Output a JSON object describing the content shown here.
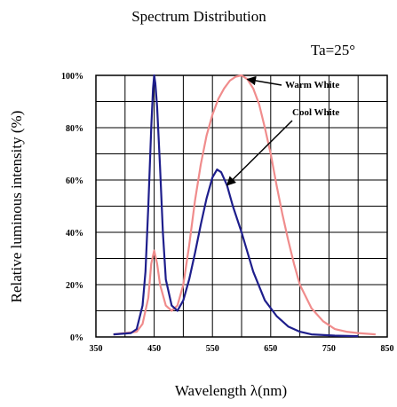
{
  "chart_data": {
    "type": "line",
    "title": "Spectrum Distribution",
    "condition_note": "Ta=25°",
    "xlabel": "Wavelength λ(nm)",
    "ylabel": "Relative luminous intensity (%)",
    "xlim": [
      350,
      850
    ],
    "ylim": [
      0,
      100
    ],
    "x_ticks": [
      "350",
      "450",
      "550",
      "650",
      "750",
      "850"
    ],
    "y_ticks": [
      "0%",
      "20%",
      "40%",
      "60%",
      "80%",
      "100%"
    ],
    "grid": true,
    "series": [
      {
        "name": "Warm White",
        "color": "#f08c8c",
        "points": [
          [
            380,
            1
          ],
          [
            420,
            2
          ],
          [
            430,
            5
          ],
          [
            440,
            15
          ],
          [
            445,
            28
          ],
          [
            450,
            33
          ],
          [
            455,
            28
          ],
          [
            460,
            20
          ],
          [
            470,
            12
          ],
          [
            480,
            10
          ],
          [
            490,
            12
          ],
          [
            500,
            20
          ],
          [
            510,
            35
          ],
          [
            520,
            52
          ],
          [
            530,
            66
          ],
          [
            540,
            77
          ],
          [
            550,
            85
          ],
          [
            560,
            91
          ],
          [
            570,
            95
          ],
          [
            580,
            98
          ],
          [
            590,
            99.5
          ],
          [
            600,
            100
          ],
          [
            610,
            98.5
          ],
          [
            620,
            95
          ],
          [
            630,
            89
          ],
          [
            640,
            80
          ],
          [
            650,
            70
          ],
          [
            660,
            58
          ],
          [
            670,
            47
          ],
          [
            680,
            37
          ],
          [
            690,
            28
          ],
          [
            700,
            20
          ],
          [
            720,
            11
          ],
          [
            740,
            6
          ],
          [
            760,
            3
          ],
          [
            780,
            2
          ],
          [
            800,
            1.5
          ],
          [
            830,
            1
          ]
        ]
      },
      {
        "name": "Cool White",
        "color": "#1e1e8c",
        "points": [
          [
            380,
            1
          ],
          [
            410,
            1.5
          ],
          [
            420,
            3
          ],
          [
            430,
            12
          ],
          [
            435,
            25
          ],
          [
            440,
            50
          ],
          [
            445,
            80
          ],
          [
            448,
            95
          ],
          [
            450,
            100
          ],
          [
            452,
            97
          ],
          [
            455,
            88
          ],
          [
            460,
            65
          ],
          [
            465,
            40
          ],
          [
            470,
            22
          ],
          [
            480,
            12
          ],
          [
            490,
            10
          ],
          [
            500,
            14
          ],
          [
            510,
            22
          ],
          [
            520,
            32
          ],
          [
            530,
            43
          ],
          [
            540,
            53
          ],
          [
            550,
            61
          ],
          [
            558,
            64
          ],
          [
            565,
            63
          ],
          [
            575,
            58
          ],
          [
            585,
            50
          ],
          [
            600,
            40
          ],
          [
            620,
            25
          ],
          [
            640,
            14
          ],
          [
            660,
            8
          ],
          [
            680,
            4
          ],
          [
            700,
            2
          ],
          [
            720,
            1
          ],
          [
            760,
            0.5
          ],
          [
            800,
            0.3
          ]
        ]
      }
    ],
    "annotations": [
      {
        "label": "Warm White",
        "target_series": "Warm White",
        "target_x": 610
      },
      {
        "label": "Cool White",
        "target_series": "Cool White",
        "target_x": 575
      }
    ]
  }
}
